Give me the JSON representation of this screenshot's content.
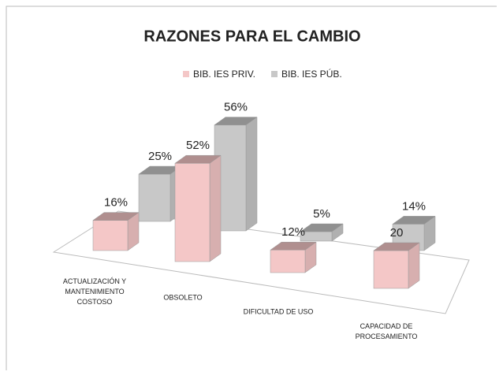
{
  "chart_data": {
    "type": "bar3d",
    "title": "RAZONES PARA EL CAMBIO",
    "categories": [
      "ACTUALIZACIÓN Y\nMANTENIMIENTO\nCOSTOSO",
      "OBSOLETO",
      "DIFICULTAD DE USO",
      "CAPACIDAD DE\nPROCESAMIENTO"
    ],
    "series": [
      {
        "name": "BIB. IES PRIV.",
        "color": "#f4c7c7",
        "values": [
          16,
          52,
          12,
          20
        ],
        "value_labels": [
          "16%",
          "52%",
          "12%",
          "20"
        ]
      },
      {
        "name": "BIB. IES PÚB.",
        "color": "#c8c8c8",
        "values": [
          25,
          56,
          5,
          14
        ],
        "value_labels": [
          "25%",
          "56%",
          "5%",
          "14%"
        ]
      }
    ],
    "legend": "top"
  }
}
